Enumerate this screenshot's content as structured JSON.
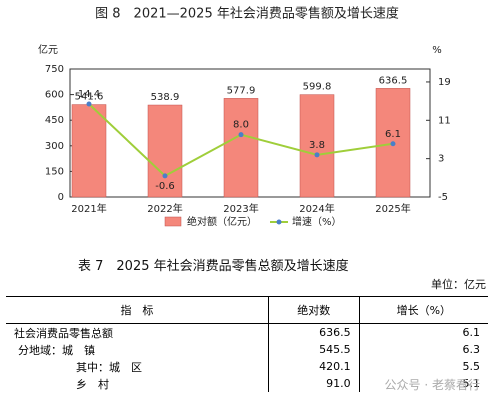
{
  "chart_data": {
    "type": "bar-line",
    "title": "图 8　2021—2025 年社会消费品零售额及增长速度",
    "y_label": "亿元",
    "y2_label": "%",
    "categories": [
      "2021年",
      "2022年",
      "2023年",
      "2024年",
      "2025年"
    ],
    "series": [
      {
        "name": "绝对额（亿元）",
        "type": "bar",
        "color": "#f4877b",
        "values": [
          541.6,
          538.9,
          577.9,
          599.8,
          636.5
        ]
      },
      {
        "name": "增速（%）",
        "type": "line",
        "axis": "y2",
        "color": "#9fce3a",
        "marker_color": "#4a7fc8",
        "values": [
          14.4,
          -0.6,
          8.0,
          3.8,
          6.1
        ],
        "value_labels": [
          "14.4",
          "-0.6",
          "8.0",
          "3.8",
          "6.1"
        ]
      }
    ],
    "ylim": [
      0,
      750
    ],
    "yticks": [
      0,
      150,
      300,
      450,
      600,
      750
    ],
    "y2lim": [
      -5,
      21.7
    ],
    "y2ticks": [
      -5,
      3,
      11,
      19
    ]
  },
  "table": {
    "title": "表 7　2025 年社会消费品零售总额及增长速度",
    "unit": "单位：亿元",
    "header": [
      "指　标",
      "绝对数",
      "增长（%）"
    ],
    "rows": [
      [
        "社会消费品零售总额",
        "636.5",
        "6.1"
      ],
      [
        "分地域：城　镇",
        "545.5",
        "6.3"
      ],
      [
        "其中：城　区",
        "420.1",
        "5.5"
      ],
      [
        "乡　村",
        "91.0",
        "5.1"
      ]
    ]
  },
  "watermark": "公众号 · 老蔡看行"
}
